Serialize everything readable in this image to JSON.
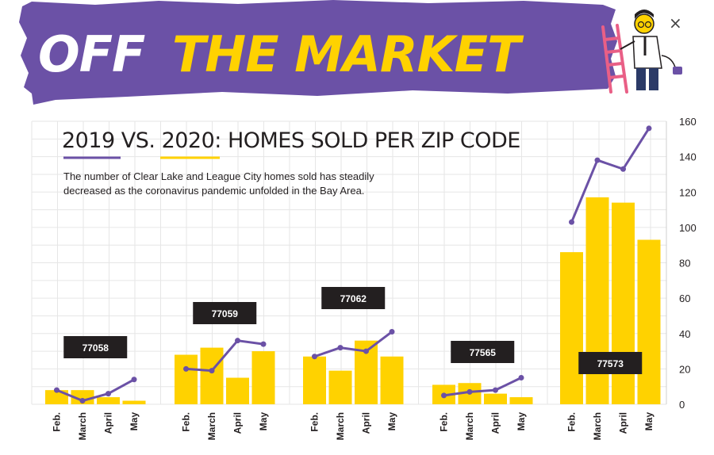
{
  "banner": {
    "word_white": "OFF",
    "word_yellow": "THE MARKET",
    "close_glyph": "×",
    "colors": {
      "purple": "#6b51a6",
      "yellow": "#ffd200",
      "white": "#ffffff"
    },
    "illustration": "person-on-ladder-icon"
  },
  "chart_data": {
    "type": "bar",
    "title": "2019 VS. 2020: HOMES SOLD PER ZIP CODE",
    "subtitle_lines": [
      "The number of Clear Lake and League City homes sold has steadily",
      "decreased as the coronavirus pandemic unfolded in the Bay Area."
    ],
    "ylim": [
      0,
      160
    ],
    "yticks": [
      0,
      20,
      40,
      60,
      80,
      100,
      120,
      140,
      160
    ],
    "y_axis_side": "right",
    "grid": true,
    "bar_color": "#ffd200",
    "line_color": "#6b51a6",
    "months": [
      "Feb.",
      "March",
      "April",
      "May"
    ],
    "groups": [
      {
        "zip": "77058",
        "bars": [
          8,
          8,
          4,
          2
        ],
        "line": [
          8,
          2,
          6,
          14
        ]
      },
      {
        "zip": "77059",
        "bars": [
          28,
          32,
          15,
          30
        ],
        "line": [
          20,
          19,
          36,
          34
        ]
      },
      {
        "zip": "77062",
        "bars": [
          27,
          19,
          36,
          27
        ],
        "line": [
          27,
          32,
          30,
          41
        ]
      },
      {
        "zip": "77565",
        "bars": [
          11,
          12,
          6,
          4
        ],
        "line": [
          5,
          7,
          8,
          15
        ]
      },
      {
        "zip": "77573",
        "bars": [
          86,
          117,
          114,
          93
        ],
        "line": [
          103,
          138,
          133,
          156
        ]
      }
    ]
  }
}
